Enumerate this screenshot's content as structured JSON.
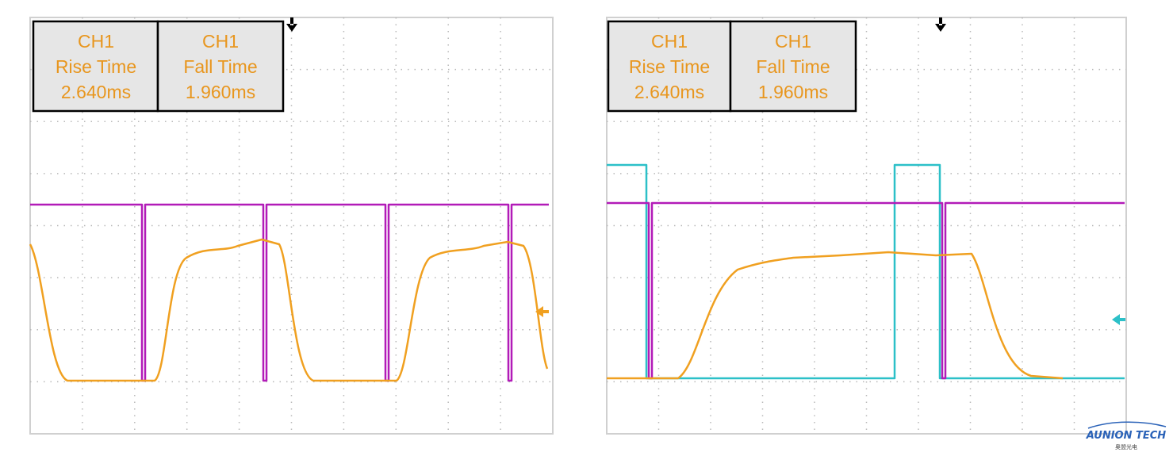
{
  "panels": [
    {
      "measurements": [
        {
          "channel": "CH1",
          "label": "Rise Time",
          "value": "2.640ms"
        },
        {
          "channel": "CH1",
          "label": "Fall Time",
          "value": "1.960ms"
        }
      ]
    },
    {
      "measurements": [
        {
          "channel": "CH1",
          "label": "Rise Time",
          "value": "2.640ms"
        },
        {
          "channel": "CH1",
          "label": "Fall Time",
          "value": "1.960ms"
        }
      ]
    }
  ],
  "logo": {
    "name": "AUNION TECH",
    "subtitle": "奥盟光电"
  }
}
